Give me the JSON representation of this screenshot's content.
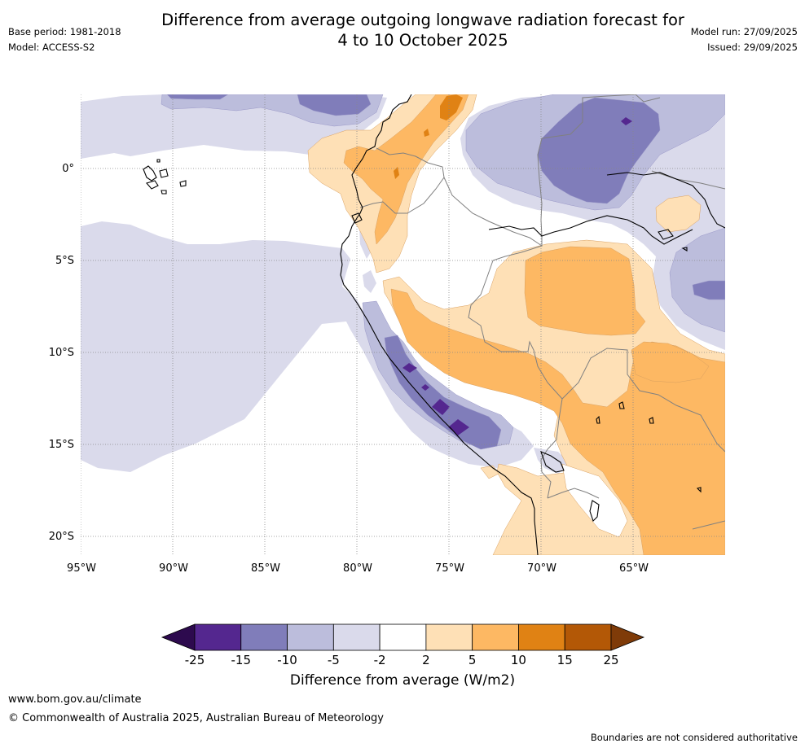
{
  "header": {
    "title_line1": "Difference from average outgoing longwave radiation forecast for",
    "title_line2": "4 to 10 October 2025",
    "base_period": "Base period: 1981-2018",
    "model": "Model: ACCESS-S2",
    "model_run": "Model run: 27/09/2025",
    "issued": "Issued: 29/09/2025"
  },
  "map": {
    "lat_labels": [
      "0°",
      "5°S",
      "10°S",
      "15°S",
      "20°S"
    ],
    "lon_labels": [
      "95°W",
      "90°W",
      "85°W",
      "80°W",
      "75°W",
      "70°W",
      "65°W"
    ],
    "colors": {
      "very_dark_purple": "#2d0a4e",
      "dark_purple": "#54278f",
      "mid_purple": "#807dba",
      "light_purple": "#bcbddc",
      "pale_purple": "#dadaeb",
      "white": "#ffffff",
      "pale_orange": "#fee0b6",
      "light_orange": "#fdb863",
      "orange": "#e08214",
      "dark_orange": "#b35806",
      "brown": "#7f3b08",
      "coast": "#000000",
      "border": "#808080",
      "grid": "#888888"
    }
  },
  "chart_data": {
    "type": "heatmap",
    "title": "Difference from average outgoing longwave radiation forecast for 4 to 10 October 2025",
    "lon_range": [
      -95,
      -60
    ],
    "lat_range": [
      -21,
      4
    ],
    "lon_ticks": [
      -95,
      -90,
      -85,
      -80,
      -75,
      -70,
      -65
    ],
    "lat_ticks": [
      0,
      -5,
      -10,
      -15,
      -20
    ],
    "colorbar": {
      "label": "Difference from average (W/m2)",
      "ticks": [
        "-25",
        "-15",
        "-10",
        "-5",
        "-2",
        "2",
        "5",
        "10",
        "15",
        "25"
      ],
      "boundaries": [
        -25,
        -15,
        -10,
        -5,
        -2,
        2,
        5,
        10,
        15,
        25
      ],
      "extend": "both",
      "colors": [
        "#2d0a4e",
        "#54278f",
        "#807dba",
        "#bcbddc",
        "#dadaeb",
        "#ffffff",
        "#fee0b6",
        "#fdb863",
        "#e08214",
        "#b35806",
        "#7f3b08"
      ]
    }
  },
  "footer": {
    "url": "www.bom.gov.au/climate",
    "copyright": "© Commonwealth of Australia 2025, Australian Bureau of Meteorology",
    "disclaimer": "Boundaries are not considered authoritative"
  }
}
